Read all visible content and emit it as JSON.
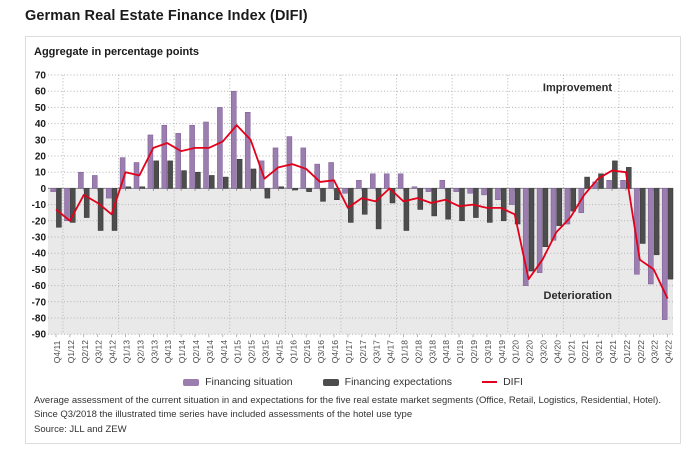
{
  "page": {
    "title": "German Real Estate Finance Index (DIFI)"
  },
  "panel": {
    "subtitle": "Aggregate in percentage points",
    "footnotes": [
      "Average assessment of the current situation in and expectations for the five real estate market segments (Office, Retail, Logistics, Residential, Hotel).",
      "Since Q3/2018 the illustrated time series have included assessments of the hotel use type",
      "Source: JLL and ZEW"
    ]
  },
  "chart_data": {
    "type": "combo-bar-line",
    "title": "German Real Estate Finance Index (DIFI)",
    "subtitle": "Aggregate in percentage points",
    "categories": [
      "Q4/11",
      "Q1/12",
      "Q2/12",
      "Q3/12",
      "Q4/12",
      "Q1/13",
      "Q2/13",
      "Q3/13",
      "Q4/13",
      "Q1/14",
      "Q2/14",
      "Q3/14",
      "Q4/14",
      "Q1/15",
      "Q2/15",
      "Q3/15",
      "Q4/15",
      "Q1/16",
      "Q2/16",
      "Q3/16",
      "Q4/16",
      "Q1/17",
      "Q2/17",
      "Q3/17",
      "Q4/17",
      "Q1/18",
      "Q2/18",
      "Q3/18",
      "Q4/18",
      "Q1/19",
      "Q2/19",
      "Q3/19",
      "Q4/19",
      "Q1/20",
      "Q2/20",
      "Q3/20",
      "Q4/20",
      "Q1/21",
      "Q2/21",
      "Q3/21",
      "Q4/21",
      "Q1/22",
      "Q2/22",
      "Q3/22",
      "Q4/22"
    ],
    "series": [
      {
        "name": "Financing situation",
        "type": "bar",
        "color": "#9b7daf",
        "border": "#7a5d93",
        "values": [
          -2,
          -20,
          10,
          8,
          -6,
          19,
          16,
          33,
          39,
          34,
          39,
          41,
          50,
          60,
          47,
          17,
          25,
          32,
          25,
          15,
          16,
          -3,
          5,
          9,
          9,
          9,
          1,
          -2,
          5,
          -2,
          -3,
          -4,
          -7,
          -10,
          -60,
          -52,
          -32,
          -22,
          -15,
          4,
          5,
          5,
          -53,
          -59,
          -81
        ]
      },
      {
        "name": "Financing expectations",
        "type": "bar",
        "color": "#4d4d4d",
        "border": "#333333",
        "values": [
          -24,
          -21,
          -18,
          -26,
          -26,
          1,
          1,
          17,
          17,
          11,
          10,
          8,
          7,
          18,
          12,
          -6,
          1,
          -1,
          -2,
          -8,
          -7,
          -21,
          -16,
          -25,
          -9,
          -26,
          -13,
          -17,
          -19,
          -20,
          -18,
          -21,
          -20,
          -22,
          -51,
          -36,
          -23,
          -14,
          7,
          9,
          17,
          13,
          -34,
          -41,
          -56
        ]
      },
      {
        "name": "DIFI",
        "type": "line",
        "color": "#e2001a",
        "values": [
          -13,
          -20,
          -4,
          -9,
          -16,
          10,
          8,
          25,
          28,
          23,
          25,
          25,
          29,
          39,
          30,
          6,
          13,
          15,
          12,
          4,
          5,
          -12,
          -6,
          -8,
          0,
          -8,
          -6,
          -9,
          -7,
          -11,
          -10,
          -12,
          -12,
          -16,
          -56,
          -44,
          -27,
          -18,
          -4,
          6,
          11,
          10,
          -44,
          -50,
          -68
        ]
      }
    ],
    "axes": {
      "ymin": -90,
      "ymax": 70,
      "tick_step": 10,
      "grid": "dotted",
      "negative_region_color": "#e9e9e9",
      "x_label_rotation": 90
    },
    "annotations": [
      "Improvement",
      "Deterioration"
    ],
    "legend_position": "bottom"
  }
}
